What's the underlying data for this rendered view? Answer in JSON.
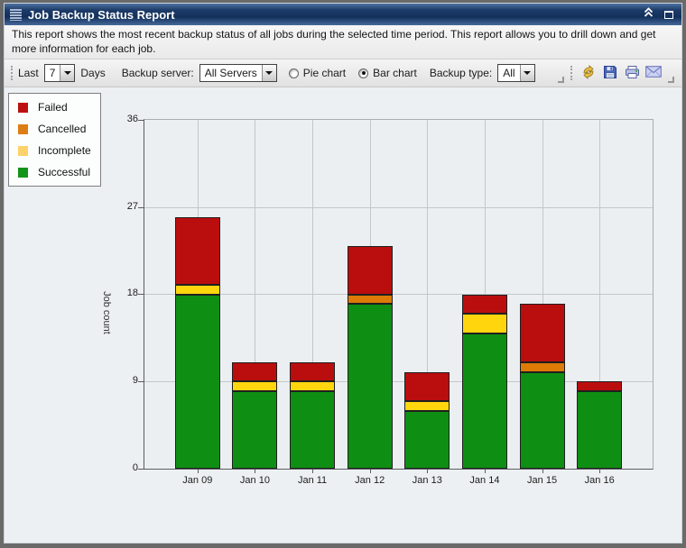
{
  "window": {
    "title": "Job Backup Status Report",
    "description": "This report shows the most recent backup status of all jobs during the selected time period. This report allows you to drill down and get more information for each job."
  },
  "toolbar": {
    "last_label": "Last",
    "days_value": "7",
    "days_label": "Days",
    "backup_server_label": "Backup server:",
    "backup_server_value": "All Servers",
    "pie_chart_label": "Pie chart",
    "bar_chart_label": "Bar chart",
    "selected_chart_type": "Bar chart",
    "backup_type_label": "Backup type:",
    "backup_type_value": "All",
    "action_icons": [
      "refresh-icon",
      "save-icon",
      "print-icon",
      "email-icon"
    ]
  },
  "legend": {
    "items": [
      {
        "label": "Failed",
        "color": "#bd1111"
      },
      {
        "label": "Cancelled",
        "color": "#dd7d15"
      },
      {
        "label": "Incomplete",
        "color": "#fdd26a"
      },
      {
        "label": "Successful",
        "color": "#129418"
      }
    ]
  },
  "chart_data": {
    "type": "bar",
    "stacked": true,
    "title": "",
    "xlabel": "",
    "ylabel": "Job count",
    "ylim": [
      0,
      36
    ],
    "yticks": [
      0,
      9,
      18,
      27,
      36
    ],
    "grid": true,
    "legend_position": "top-left",
    "categories": [
      "Jan 09",
      "Jan 10",
      "Jan 11",
      "Jan 12",
      "Jan 13",
      "Jan 14",
      "Jan 15",
      "Jan 16"
    ],
    "series": [
      {
        "name": "Successful",
        "color": "#0e8f13",
        "values": [
          18,
          8,
          8,
          17,
          6,
          14,
          10,
          8
        ]
      },
      {
        "name": "Incomplete",
        "color": "#ffd60e",
        "values": [
          1,
          1,
          1,
          0,
          1,
          2,
          0,
          0
        ]
      },
      {
        "name": "Cancelled",
        "color": "#dd7b06",
        "values": [
          0,
          0,
          0,
          1,
          0,
          0,
          1,
          0
        ]
      },
      {
        "name": "Failed",
        "color": "#ba0e0e",
        "values": [
          7,
          2,
          2,
          5,
          3,
          2,
          6,
          1
        ]
      }
    ],
    "totals": [
      26,
      11,
      11,
      23,
      10,
      18,
      17,
      9
    ]
  }
}
